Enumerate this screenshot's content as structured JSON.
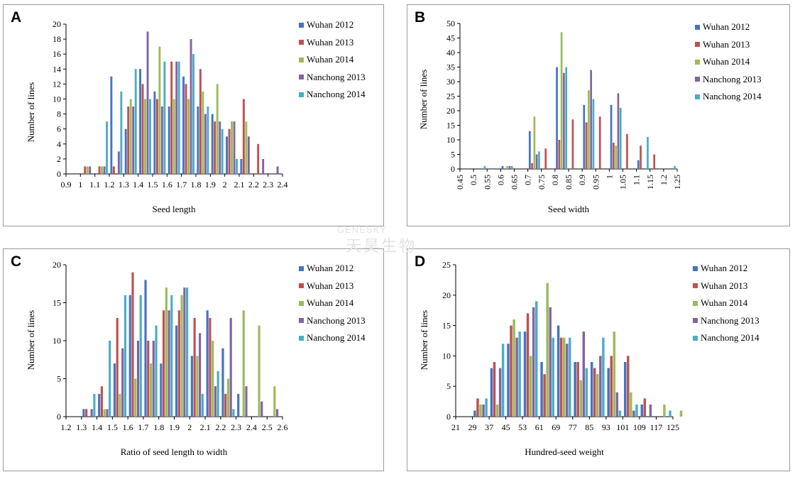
{
  "colors": [
    "#4472C4",
    "#C0504D",
    "#9BBB59",
    "#8064A2",
    "#4BACC6"
  ],
  "series_names": [
    "Wuhan 2012",
    "Wuhan 2013",
    "Wuhan 2014",
    "Nanchong 2013",
    "Nanchong 2014"
  ],
  "watermark": {
    "line1": "GENESKY",
    "line2": "天昊生物"
  },
  "chart_data": [
    {
      "panel": "A",
      "type": "bar",
      "xlabel": "Seed length",
      "ylabel": "Number of lines",
      "categories": [
        "0.9",
        "1",
        "1.1",
        "1.2",
        "1.3",
        "1.4",
        "1.5",
        "1.6",
        "1.7",
        "1.8",
        "1.9",
        "2",
        "2.1",
        "2.2",
        "2.3",
        "2.4"
      ],
      "ylim": [
        0,
        20
      ],
      "yticks": [
        0,
        2,
        4,
        6,
        8,
        10,
        12,
        14,
        16,
        18,
        20
      ],
      "series": [
        {
          "name": "Wuhan 2012",
          "values": [
            0,
            0,
            0,
            13,
            6,
            14,
            11,
            9,
            13,
            9,
            8,
            5,
            2,
            0,
            0,
            0
          ]
        },
        {
          "name": "Wuhan 2013",
          "values": [
            0,
            1,
            1,
            1,
            9,
            12,
            10,
            15,
            12,
            14,
            7,
            6,
            10,
            4,
            0,
            0
          ]
        },
        {
          "name": "Wuhan 2014",
          "values": [
            0,
            1,
            1,
            0,
            10,
            10,
            17,
            10,
            10,
            11,
            12,
            7,
            7,
            0,
            0,
            0
          ]
        },
        {
          "name": "Nanchong 2013",
          "values": [
            0,
            1,
            1,
            3,
            9,
            19,
            9,
            15,
            18,
            8,
            7,
            7,
            5,
            2,
            1,
            0
          ]
        },
        {
          "name": "Nanchong 2014",
          "values": [
            0,
            0,
            7,
            11,
            14,
            10,
            15,
            15,
            16,
            9,
            6,
            2,
            0,
            0,
            0,
            0
          ]
        }
      ]
    },
    {
      "panel": "B",
      "type": "bar",
      "xlabel": "Seed width",
      "ylabel": "Number of lines",
      "categories": [
        "0.45",
        "0.5",
        "0.55",
        "0.6",
        "0.65",
        "0.7",
        "0.75",
        "0.8",
        "0.85",
        "0.9",
        "0.95",
        "1",
        "1.05",
        "1.1",
        "1.15",
        "1.2",
        "1.25"
      ],
      "ylim": [
        0,
        50
      ],
      "yticks": [
        0,
        5,
        10,
        15,
        20,
        25,
        30,
        35,
        40,
        45,
        50
      ],
      "series": [
        {
          "name": "Wuhan 2012",
          "values": [
            0,
            0,
            0,
            1,
            0,
            13,
            0,
            35,
            0,
            22,
            0,
            22,
            0,
            3,
            0,
            0,
            0
          ]
        },
        {
          "name": "Wuhan 2013",
          "values": [
            0,
            0,
            0,
            0,
            0,
            2,
            7,
            10,
            17,
            16,
            18,
            9,
            12,
            8,
            5,
            0,
            0
          ]
        },
        {
          "name": "Wuhan 2014",
          "values": [
            0,
            0,
            0,
            1,
            0,
            18,
            0,
            47,
            0,
            27,
            0,
            8,
            0,
            0,
            0,
            0,
            0
          ]
        },
        {
          "name": "Nanchong 2013",
          "values": [
            0,
            0,
            0,
            1,
            0,
            5,
            0,
            33,
            0,
            34,
            0,
            26,
            0,
            0,
            0,
            0,
            0
          ]
        },
        {
          "name": "Nanchong 2014",
          "values": [
            0,
            1,
            0,
            1,
            0,
            6,
            0,
            35,
            0,
            24,
            0,
            21,
            0,
            11,
            0,
            1,
            0
          ]
        }
      ]
    },
    {
      "panel": "C",
      "type": "bar",
      "xlabel": "Ratio of seed length to width",
      "ylabel": "Number of lines",
      "categories": [
        "1.2",
        "1.3",
        "1.4",
        "1.5",
        "1.6",
        "1.7",
        "1.8",
        "1.9",
        "2",
        "2.1",
        "2.2",
        "2.3",
        "2.4",
        "2.5",
        "2.6"
      ],
      "ylim": [
        0,
        20
      ],
      "yticks": [
        0,
        5,
        10,
        15,
        20
      ],
      "series": [
        {
          "name": "Wuhan 2012",
          "values": [
            0,
            1,
            3,
            7,
            16,
            18,
            7,
            12,
            8,
            14,
            9,
            3,
            0,
            0,
            0
          ]
        },
        {
          "name": "Wuhan 2013",
          "values": [
            0,
            1,
            4,
            13,
            19,
            10,
            14,
            14,
            13,
            13,
            3,
            0,
            0,
            0,
            0
          ]
        },
        {
          "name": "Wuhan 2014",
          "values": [
            0,
            0,
            1,
            3,
            5,
            7,
            17,
            16,
            8,
            10,
            5,
            14,
            12,
            4,
            0
          ]
        },
        {
          "name": "Nanchong 2013",
          "values": [
            0,
            1,
            1,
            9,
            10,
            10,
            14,
            17,
            11,
            4,
            13,
            4,
            2,
            1,
            0
          ]
        },
        {
          "name": "Nanchong 2014",
          "values": [
            0,
            3,
            10,
            16,
            16,
            12,
            16,
            17,
            3,
            6,
            1,
            0,
            0,
            0,
            0
          ]
        }
      ]
    },
    {
      "panel": "D",
      "type": "bar",
      "xlabel": "Hundred-seed weight",
      "ylabel": "Number of lines",
      "categories": [
        "21",
        "29",
        "37",
        "45",
        "53",
        "61",
        "69",
        "77",
        "85",
        "93",
        "101",
        "109",
        "117",
        "125"
      ],
      "ylim": [
        0,
        25
      ],
      "yticks": [
        0,
        5,
        10,
        15,
        20,
        25
      ],
      "series": [
        {
          "name": "Wuhan 2012",
          "values": [
            0,
            1,
            8,
            12,
            14,
            9,
            15,
            9,
            9,
            8,
            9,
            2,
            0,
            0
          ]
        },
        {
          "name": "Wuhan 2013",
          "values": [
            0,
            3,
            9,
            15,
            17,
            7,
            13,
            9,
            8,
            10,
            10,
            3,
            0,
            0
          ]
        },
        {
          "name": "Wuhan 2014",
          "values": [
            0,
            2,
            2,
            16,
            10,
            22,
            13,
            6,
            7,
            14,
            4,
            0,
            2,
            1
          ]
        },
        {
          "name": "Nanchong 2013",
          "values": [
            0,
            2,
            8,
            13,
            18,
            18,
            12,
            14,
            10,
            4,
            1,
            2,
            0,
            0
          ]
        },
        {
          "name": "Nanchong 2014",
          "values": [
            0,
            3,
            12,
            14,
            19,
            13,
            13,
            8,
            13,
            1,
            2,
            0,
            1,
            0
          ]
        }
      ]
    }
  ]
}
